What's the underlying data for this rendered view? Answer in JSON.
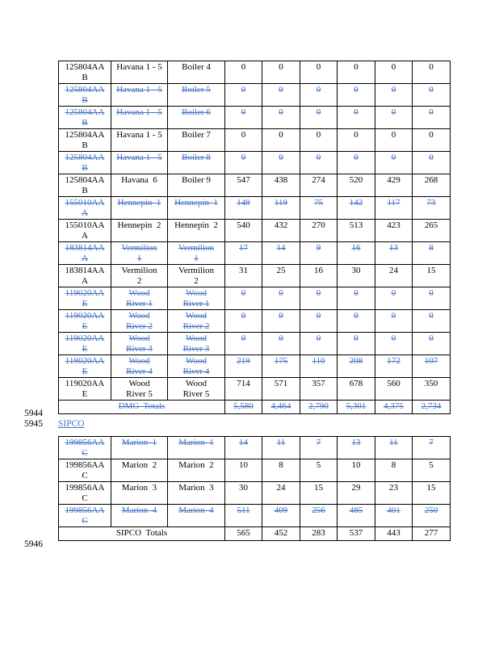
{
  "colors": {
    "strike_blue": "#4472C4",
    "text_black": "#000000"
  },
  "line_numbers": {
    "n1": "5944",
    "n2": "5945",
    "n3": "5946"
  },
  "sipco_heading": "SIPCO",
  "dmg_table": {
    "rows": [
      {
        "id": "125804AA\nB",
        "plant": "Havana 1 - 5",
        "unit": "Boiler 4",
        "values": [
          "0",
          "0",
          "0",
          "0",
          "0",
          "0"
        ],
        "struck": false
      },
      {
        "id": "125804AA\nB",
        "plant": "Havana 1 - 5",
        "unit": "Boiler 5",
        "values": [
          "0",
          "0",
          "0",
          "0",
          "0",
          "0"
        ],
        "struck": true
      },
      {
        "id": "125804AA\nB",
        "plant": "Havana 1 - 5",
        "unit": "Boiler 6",
        "values": [
          "0",
          "0",
          "0",
          "0",
          "0",
          "0"
        ],
        "struck": true
      },
      {
        "id": "125804AA\nB",
        "plant": "Havana 1 - 5",
        "unit": "Boiler 7",
        "values": [
          "0",
          "0",
          "0",
          "0",
          "0",
          "0"
        ],
        "struck": false
      },
      {
        "id": "125804AA\nB",
        "plant": "Havana 1 - 5",
        "unit": "Boiler 8",
        "values": [
          "0",
          "0",
          "0",
          "0",
          "0",
          "0"
        ],
        "struck": true
      },
      {
        "id": "125804AA\nB",
        "plant": "Havana  6",
        "unit": "Boiler 9",
        "values": [
          "547",
          "438",
          "274",
          "520",
          "429",
          "268"
        ],
        "struck": false
      },
      {
        "id": "155010AA\nA",
        "plant": "Hennepin  1",
        "unit": "Hennepin  1",
        "values": [
          "149",
          "119",
          "75",
          "142",
          "117",
          "73"
        ],
        "struck": true
      },
      {
        "id": "155010AA\nA",
        "plant": "Hennepin  2",
        "unit": "Hennepin  2",
        "values": [
          "540",
          "432",
          "270",
          "513",
          "423",
          "265"
        ],
        "struck": false
      },
      {
        "id": "183814AA\nA",
        "plant": "Vermilion\n1",
        "unit": "Vermilion\n1",
        "values": [
          "17",
          "14",
          "9",
          "16",
          "13",
          "8"
        ],
        "struck": true
      },
      {
        "id": "183814AA\nA",
        "plant": "Vermilion\n2",
        "unit": "Vermilion\n2",
        "values": [
          "31",
          "25",
          "16",
          "30",
          "24",
          "15"
        ],
        "struck": false
      },
      {
        "id": "119020AA\nE",
        "plant": "Wood\nRiver 1",
        "unit": "Wood\nRiver 1",
        "values": [
          "0",
          "0",
          "0",
          "0",
          "0",
          "0"
        ],
        "struck": true
      },
      {
        "id": "119020AA\nE",
        "plant": "Wood\nRiver 2",
        "unit": "Wood\nRiver 2",
        "values": [
          "0",
          "0",
          "0",
          "0",
          "0",
          "0"
        ],
        "struck": true
      },
      {
        "id": "119020AA\nE",
        "plant": "Wood\nRiver 3",
        "unit": "Wood\nRiver 3",
        "values": [
          "0",
          "0",
          "0",
          "0",
          "0",
          "0"
        ],
        "struck": true
      },
      {
        "id": "119020AA\nE",
        "plant": "Wood\nRiver 4",
        "unit": "Wood\nRiver 4",
        "values": [
          "219",
          "175",
          "110",
          "208",
          "172",
          "107"
        ],
        "struck": true
      },
      {
        "id": "119020AA\nE",
        "plant": "Wood\nRiver 5",
        "unit": "Wood\nRiver 5",
        "values": [
          "714",
          "571",
          "357",
          "678",
          "560",
          "350"
        ],
        "struck": false
      },
      {
        "total": true,
        "label": "DMG  Totals",
        "values": [
          "5,580",
          "4,464",
          "2,790",
          "5,301",
          "4,375",
          "2,734"
        ],
        "struck": true
      }
    ]
  },
  "sipco_table": {
    "rows": [
      {
        "id": "199856AA\nC",
        "plant": "Marion  1",
        "unit": "Marion  1",
        "values": [
          "14",
          "11",
          "7",
          "13",
          "11",
          "7"
        ],
        "struck": true
      },
      {
        "id": "199856AA\nC",
        "plant": "Marion  2",
        "unit": "Marion  2",
        "values": [
          "10",
          "8",
          "5",
          "10",
          "8",
          "5"
        ],
        "struck": false
      },
      {
        "id": "199856AA\nC",
        "plant": "Marion  3",
        "unit": "Marion  3",
        "values": [
          "30",
          "24",
          "15",
          "29",
          "23",
          "15"
        ],
        "struck": false
      },
      {
        "id": "199856AA\nC",
        "plant": "Marion  4",
        "unit": "Marion  4",
        "values": [
          "511",
          "409",
          "256",
          "485",
          "401",
          "250"
        ],
        "struck": true
      },
      {
        "total": true,
        "label": "SIPCO  Totals",
        "values": [
          "565",
          "452",
          "283",
          "537",
          "443",
          "277"
        ],
        "struck": false
      }
    ]
  }
}
